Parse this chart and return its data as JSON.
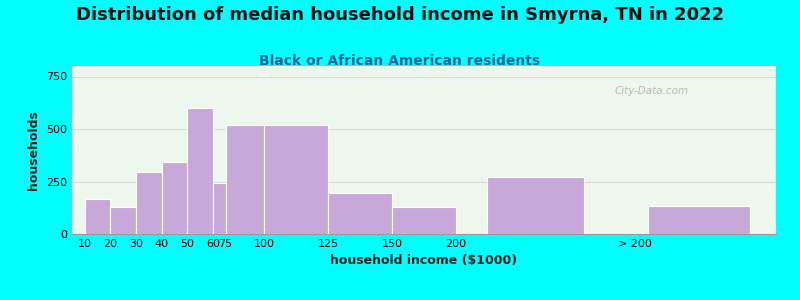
{
  "title": "Distribution of median household income in Smyrna, TN in 2022",
  "subtitle": "Black or African American residents",
  "xlabel": "household income ($1000)",
  "ylabel": "households",
  "background_outer": "#00FFFF",
  "background_inner": "#eef7ee",
  "bar_color": "#c8a8d8",
  "bar_labels": [
    "10",
    "20",
    "30",
    "40",
    "50",
    "60",
    "75",
    "100",
    "125",
    "150",
    "200",
    "> 200"
  ],
  "bar_heights": [
    165,
    130,
    295,
    345,
    600,
    245,
    520,
    520,
    195,
    130,
    270,
    135
  ],
  "ylim": [
    0,
    800
  ],
  "yticks": [
    0,
    250,
    500,
    750
  ],
  "title_fontsize": 13,
  "subtitle_fontsize": 10,
  "axis_label_fontsize": 9,
  "tick_fontsize": 8,
  "watermark_text": "City-Data.com",
  "bar_lefts": [
    5,
    15,
    25,
    35,
    45,
    55,
    60,
    75,
    100,
    125,
    162,
    225
  ],
  "bar_widths": [
    10,
    10,
    10,
    10,
    10,
    5,
    15,
    25,
    25,
    25,
    38,
    40
  ],
  "xlim": [
    0,
    275
  ],
  "tick_positions": [
    5,
    15,
    25,
    35,
    45,
    55,
    60,
    75,
    100,
    125,
    150,
    220
  ]
}
